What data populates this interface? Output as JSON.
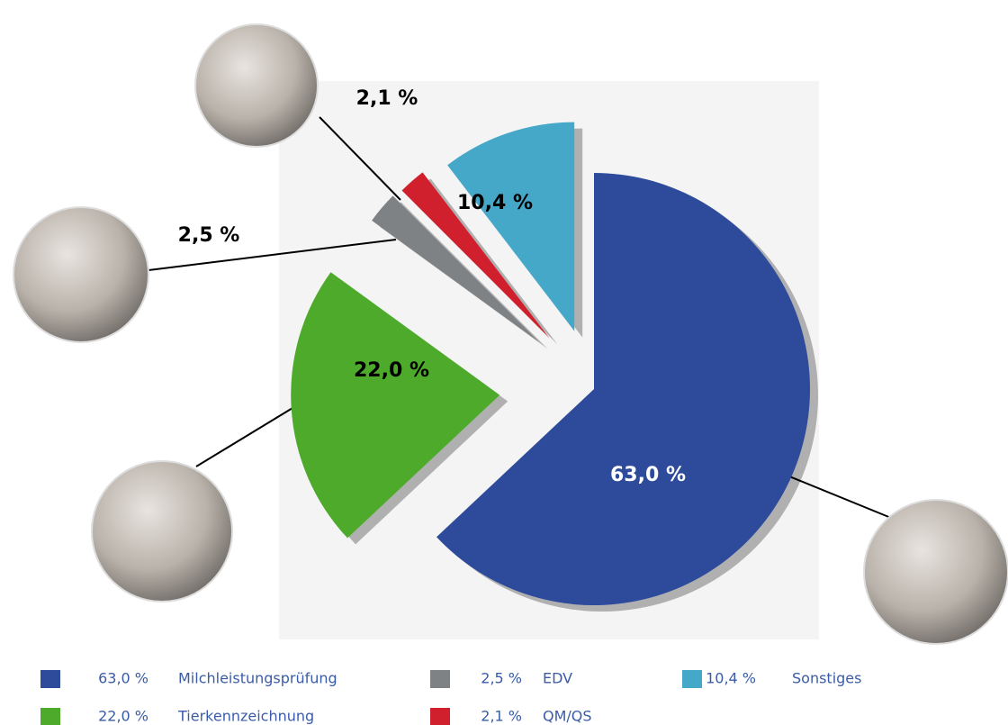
{
  "chart_data": {
    "type": "pie",
    "categories": [
      "Milchleistungsprüfung",
      "Tierkennzeichnung",
      "EDV",
      "QM/QS",
      "Sonstiges"
    ],
    "values": [
      63.0,
      22.0,
      2.5,
      2.1,
      10.4
    ],
    "value_labels": [
      "63,0 %",
      "22,0 %",
      "2,5 %",
      "2,1 %",
      "10,4 %"
    ],
    "colors": [
      "#2e4b9b",
      "#4daa2a",
      "#7f8285",
      "#d0202e",
      "#45a8c8"
    ]
  }
}
